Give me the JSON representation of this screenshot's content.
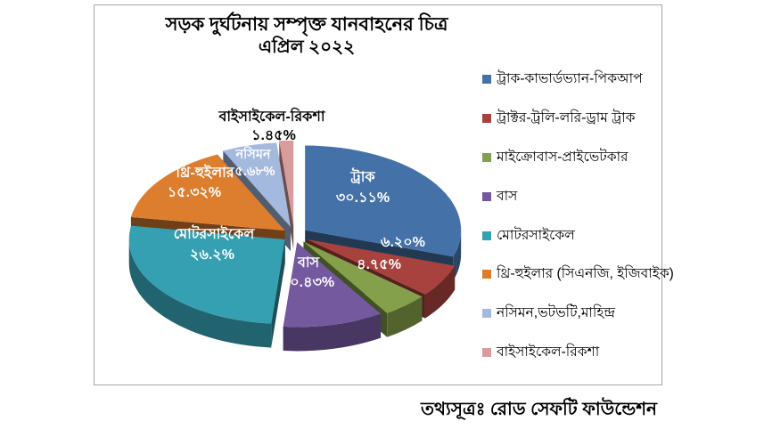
{
  "chart_data": {
    "type": "pie",
    "style": "3d-exploded",
    "title": "সড়ক দুর্ঘটনায় সম্পৃক্ত যানবাহনের চিত্র",
    "subtitle": "এপ্রিল ২০২২",
    "legend_position": "right",
    "source": "তথ্যসূত্রঃ রোড সেফটি ফাউন্ডেশন",
    "slices": [
      {
        "legend": "ট্রাক-কাভার্ডভ্যান-পিকআপ",
        "pie_label": "ট্রাক",
        "pct_label": "৩০.১১%",
        "value": 30.11,
        "color": "#4472a8"
      },
      {
        "legend": "ট্রাক্টর-ট্রলি-লরি-ড্রাম ট্রাক",
        "pie_label": "",
        "pct_label": "৬.২০%",
        "value": 6.2,
        "color": "#a8423e"
      },
      {
        "legend": "মাইক্রোবাস-প্রাইভেটকার",
        "pie_label": "",
        "pct_label": "৪.৭৫%",
        "value": 4.75,
        "color": "#84a04a"
      },
      {
        "legend": "বাস",
        "pie_label": "বাস",
        "pct_label": "১০.৪৩%",
        "value": 10.43,
        "color": "#75599f"
      },
      {
        "legend": "মোটরসাইকেল",
        "pie_label": "মোটরসাইকেল",
        "pct_label": "২৬.২%",
        "value": 26.2,
        "color": "#35a0b2"
      },
      {
        "legend": "থ্রি-হুইলার (সিএনজি, ইজিবাইক)",
        "pie_label": "থ্রি-হুইলার",
        "pct_label": "১৫.৩২%",
        "value": 15.32,
        "color": "#dd7e2f"
      },
      {
        "legend": "নসিমন,ভটভটি,মাহিন্দ্র",
        "pie_label": "নসিমন",
        "pct_label": "৫.৬৮%",
        "value": 5.68,
        "color": "#a4b9de"
      },
      {
        "legend": "বাইসাইকেল-রিকশা",
        "pie_label": "বাইসাইকেল-রিকশা",
        "pct_label": "১.৪৫%",
        "value": 1.45,
        "color": "#d89c9c"
      }
    ]
  }
}
